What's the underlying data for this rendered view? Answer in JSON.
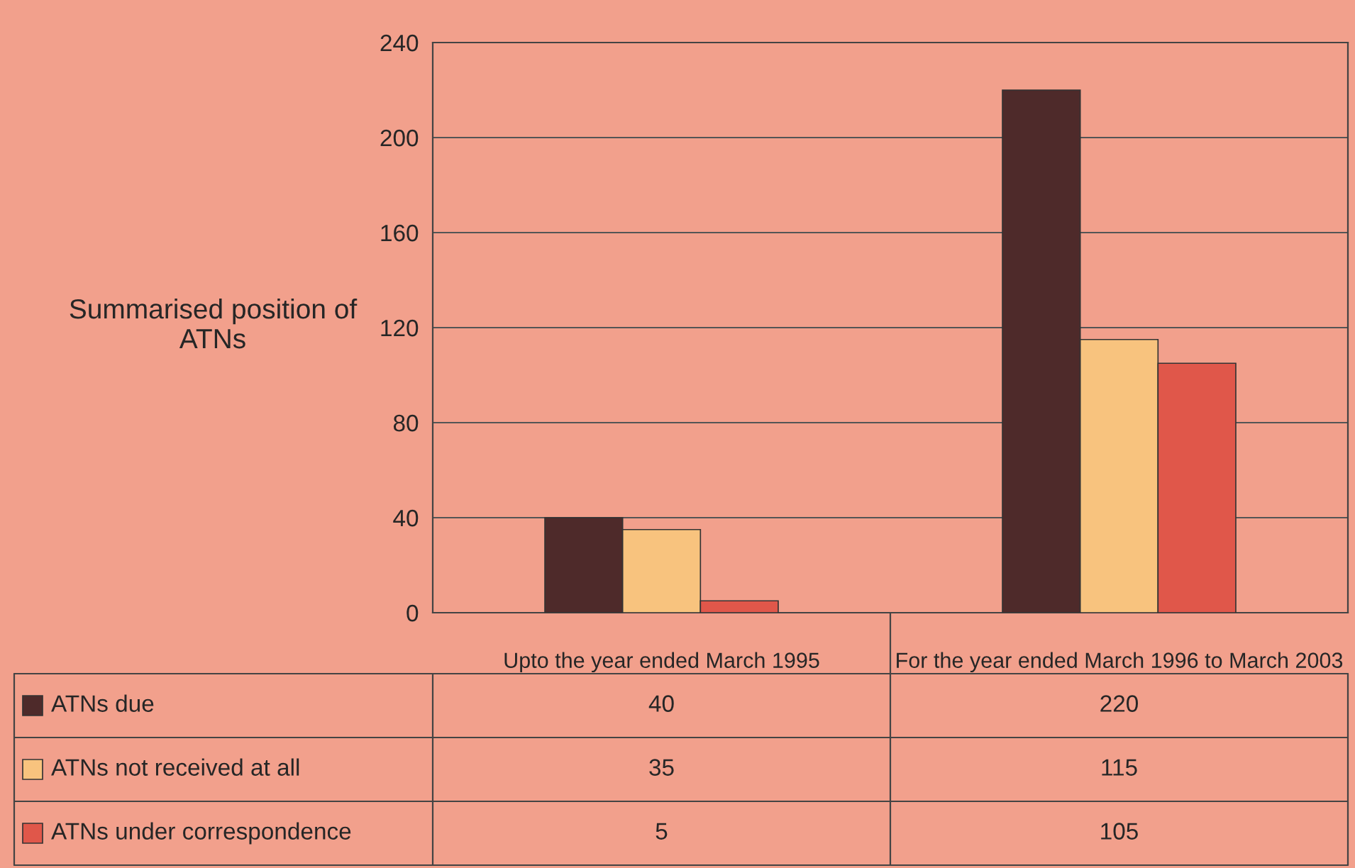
{
  "chart_data": {
    "type": "bar",
    "ylabel": "Summarised position of ATNs",
    "categories": [
      "Upto the year ended March 1995",
      "For the year ended March 1996 to March 2003"
    ],
    "series": [
      {
        "name": "ATNs due",
        "color": "#4e2a2a",
        "values": [
          40,
          220
        ]
      },
      {
        "name": "ATNs not received at all",
        "color": "#f8c37e",
        "values": [
          35,
          115
        ]
      },
      {
        "name": "ATNs under correspondence",
        "color": "#e0574a",
        "values": [
          5,
          105
        ]
      }
    ],
    "ylim": [
      0,
      240
    ],
    "yticks": [
      0,
      40,
      80,
      120,
      160,
      200,
      240
    ],
    "grid": "y",
    "legend": "bottom",
    "data_labels": true
  }
}
